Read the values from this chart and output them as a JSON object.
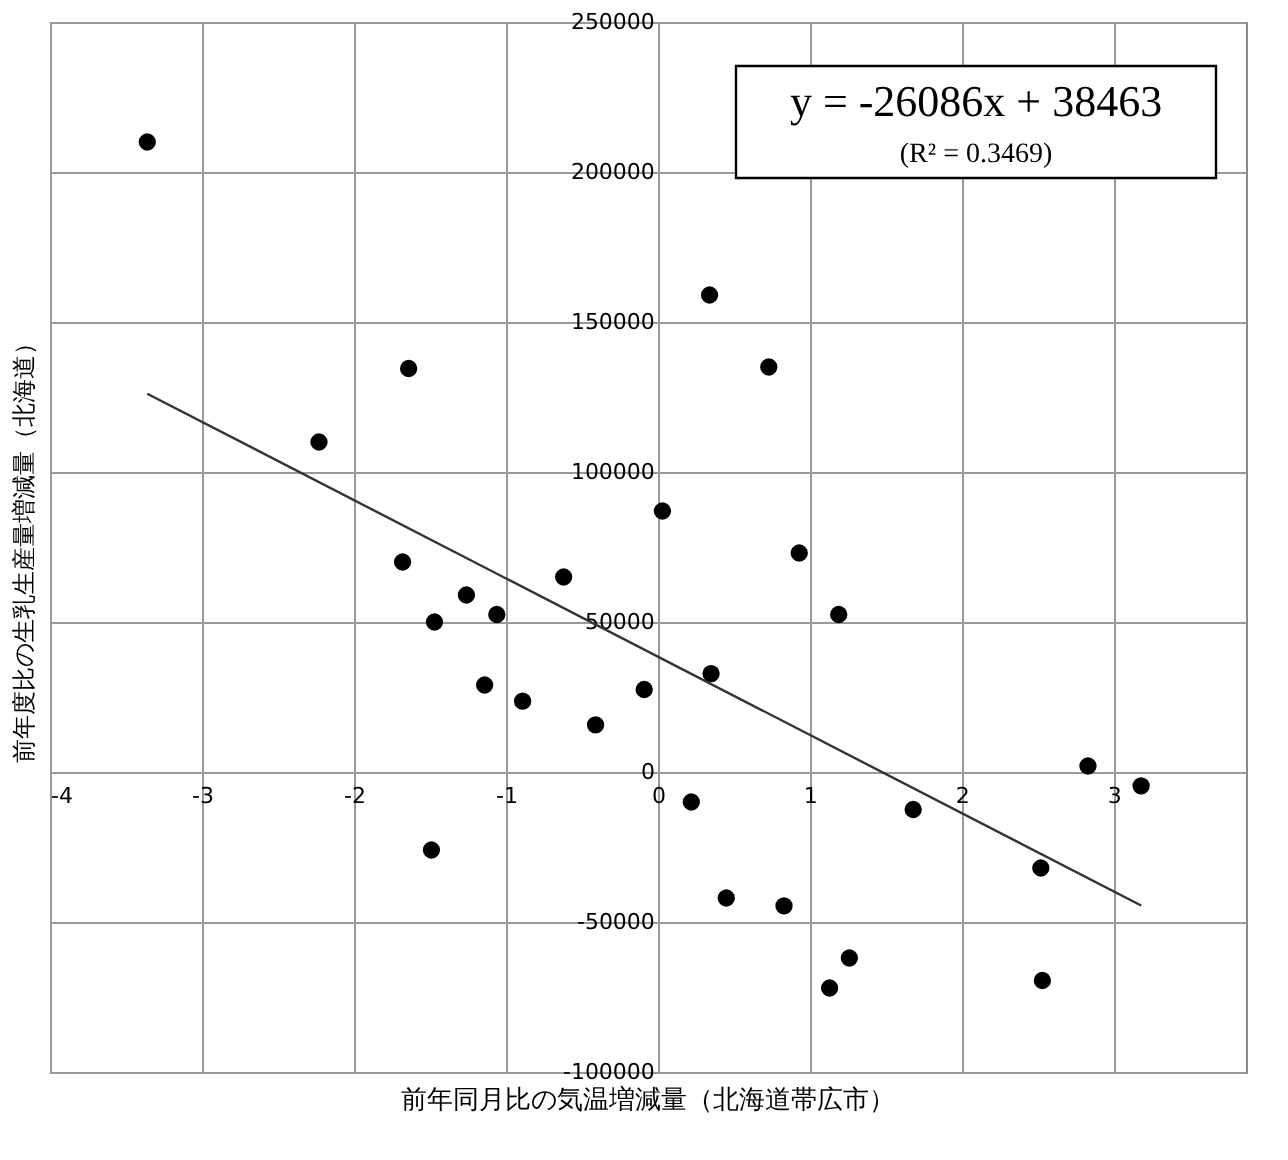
{
  "chart_data": {
    "type": "scatter",
    "xlabel": "前年同月比の気温増減量（北海道帯広市）",
    "ylabel": "前年度比の生乳生産量増減量（北海道）",
    "xlim": [
      -4,
      3.87
    ],
    "xticks": [
      -4,
      -3,
      -2,
      -1,
      0,
      1,
      2,
      3
    ],
    "ylim": [
      -100000,
      250000
    ],
    "yticks": [
      -100000,
      -50000,
      0,
      50000,
      100000,
      150000,
      200000,
      250000
    ],
    "grid": true,
    "marker": "circle",
    "annotations": [
      "y = -26086x + 38463",
      "(R² = 0.3469)"
    ],
    "series": [
      {
        "color": "#000000",
        "x": [
          -3.36,
          -2.23,
          -1.64,
          -1.68,
          -1.26,
          -1.47,
          -1.06,
          -1.14,
          -0.89,
          -0.62,
          -0.41,
          -0.09,
          0.03,
          0.34,
          0.35,
          0.22,
          0.45,
          0.73,
          0.93,
          1.19,
          0.83,
          1.26,
          1.13,
          1.68,
          2.52,
          2.53,
          2.83,
          3.18,
          -1.49
        ],
        "values": [
          210000,
          110000,
          134500,
          70000,
          59000,
          50000,
          52500,
          29000,
          23600,
          65000,
          15700,
          27500,
          87000,
          159000,
          32800,
          -10000,
          -42000,
          135000,
          73000,
          52500,
          -44600,
          -62000,
          -72000,
          -12500,
          -32000,
          -69500,
          2000,
          -4600,
          -26000
        ]
      },
      {
        "type": "line",
        "color": "#333333",
        "marker": "none",
        "x": [
          -3.36,
          3.18
        ],
        "values": [
          126100,
          -44500
        ]
      }
    ]
  }
}
